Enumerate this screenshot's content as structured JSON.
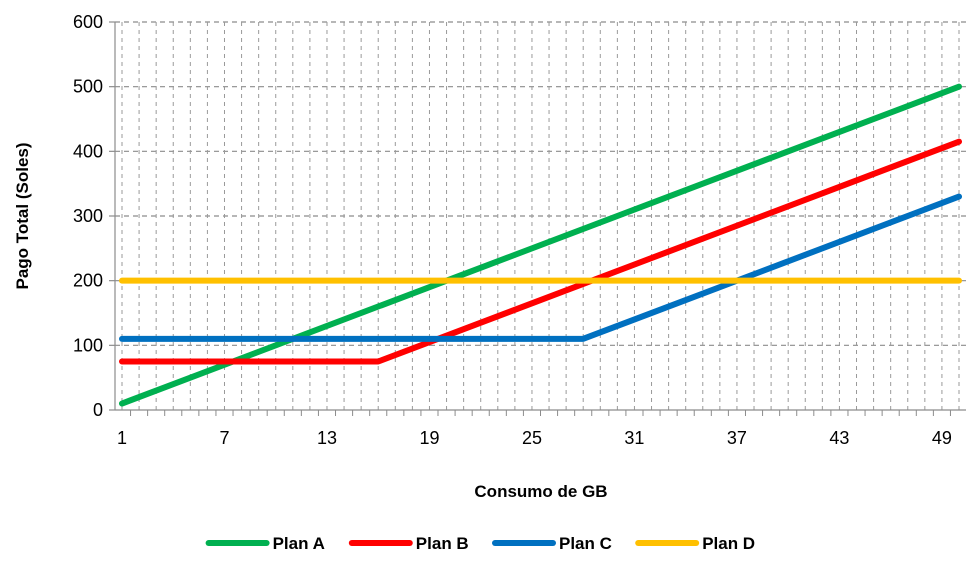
{
  "chart_data": {
    "type": "line",
    "title": "",
    "xlabel": "Consumo de GB",
    "ylabel": "Pago Total (Soles)",
    "x": [
      1,
      2,
      3,
      4,
      5,
      6,
      7,
      8,
      9,
      10,
      11,
      12,
      13,
      14,
      15,
      16,
      17,
      18,
      19,
      20,
      21,
      22,
      23,
      24,
      25,
      26,
      27,
      28,
      29,
      30,
      31,
      32,
      33,
      34,
      35,
      36,
      37,
      38,
      39,
      40,
      41,
      42,
      43,
      44,
      45,
      46,
      47,
      48,
      49,
      50
    ],
    "x_tick_labels": [
      "1",
      "7",
      "13",
      "19",
      "25",
      "31",
      "37",
      "43",
      "49"
    ],
    "y_tick_labels": [
      "0",
      "100",
      "200",
      "300",
      "400",
      "500",
      "600"
    ],
    "ylim": [
      0,
      600
    ],
    "grid": "horizontal and vertical dashed",
    "legend_position": "bottom",
    "series": [
      {
        "name": "Plan A",
        "color": "#00b050",
        "points": [
          [
            1,
            10
          ],
          [
            50,
            500
          ]
        ]
      },
      {
        "name": "Plan B",
        "color": "#ff0000",
        "points": [
          [
            1,
            75
          ],
          [
            16,
            75
          ],
          [
            50,
            415
          ]
        ]
      },
      {
        "name": "Plan C",
        "color": "#0070c0",
        "points": [
          [
            1,
            110
          ],
          [
            28,
            110
          ],
          [
            50,
            330
          ]
        ]
      },
      {
        "name": "Plan D",
        "color": "#ffc000",
        "points": [
          [
            1,
            200
          ],
          [
            50,
            200
          ]
        ]
      }
    ]
  }
}
